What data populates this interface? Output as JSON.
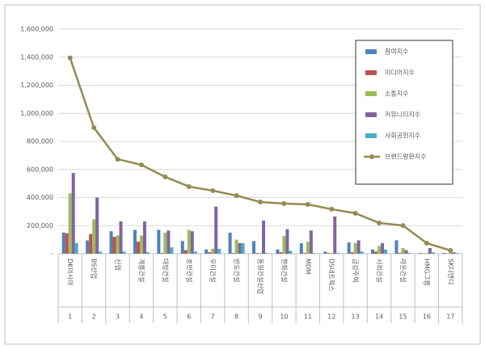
{
  "chart_data": {
    "type": "bar",
    "categories": [
      "DK아시아",
      "BS산업",
      "신영",
      "계룡건설",
      "대방건설",
      "호반건설",
      "우미건설",
      "반도건설",
      "동원건설산업",
      "한화건설",
      "MDM",
      "DS네트웍스",
      "금강주택",
      "서희건설",
      "라온건설",
      "HMG그룹",
      "SK디앤디"
    ],
    "ranks": [
      1,
      2,
      3,
      4,
      5,
      6,
      7,
      8,
      9,
      10,
      11,
      12,
      13,
      14,
      15,
      16,
      17
    ],
    "series": [
      {
        "name": "참여지수",
        "color": "#4f81bd",
        "values": [
          150000,
          95000,
          160000,
          170000,
          170000,
          90000,
          30000,
          150000,
          90000,
          30000,
          75000,
          15000,
          80000,
          30000,
          95000,
          5000,
          5000
        ]
      },
      {
        "name": "미디어지수",
        "color": "#c0504d",
        "values": [
          145000,
          140000,
          120000,
          85000,
          5000,
          25000,
          10000,
          5000,
          5000,
          10000,
          5000,
          5000,
          10000,
          15000,
          5000,
          2000,
          2000
        ]
      },
      {
        "name": "소통지수",
        "color": "#9bbb59",
        "values": [
          430000,
          245000,
          130000,
          130000,
          150000,
          170000,
          35000,
          100000,
          5000,
          125000,
          85000,
          5000,
          75000,
          55000,
          40000,
          5000,
          10000
        ]
      },
      {
        "name": "커뮤니티지수",
        "color": "#8064a2",
        "values": [
          575000,
          400000,
          230000,
          230000,
          165000,
          160000,
          335000,
          75000,
          235000,
          175000,
          165000,
          265000,
          95000,
          75000,
          25000,
          40000,
          10000
        ]
      },
      {
        "name": "사회공헌지수",
        "color": "#4bacc6",
        "values": [
          75000,
          15000,
          15000,
          10000,
          45000,
          15000,
          35000,
          75000,
          5000,
          20000,
          5000,
          5000,
          15000,
          30000,
          5000,
          10000,
          5000
        ]
      },
      {
        "name": "브랜드평판지수",
        "color": "#948a54",
        "type": "line",
        "values": [
          1395000,
          898000,
          673000,
          633000,
          547000,
          478000,
          449000,
          414000,
          368000,
          357000,
          351000,
          317000,
          288000,
          219000,
          201000,
          75000,
          23000
        ]
      }
    ],
    "ylim": [
      0,
      1600000
    ],
    "yticks": [
      {
        "value": 0,
        "label": "-"
      },
      {
        "value": 200000,
        "label": "200,000"
      },
      {
        "value": 400000,
        "label": "400,000"
      },
      {
        "value": 600000,
        "label": "600,000"
      },
      {
        "value": 800000,
        "label": "800,000"
      },
      {
        "value": 1000000,
        "label": "1,000,000"
      },
      {
        "value": 1200000,
        "label": "1,200,000"
      },
      {
        "value": 1400000,
        "label": "1,400,000"
      },
      {
        "value": 1600000,
        "label": "1,600,000"
      }
    ],
    "grid": true,
    "legend": "top-right"
  }
}
